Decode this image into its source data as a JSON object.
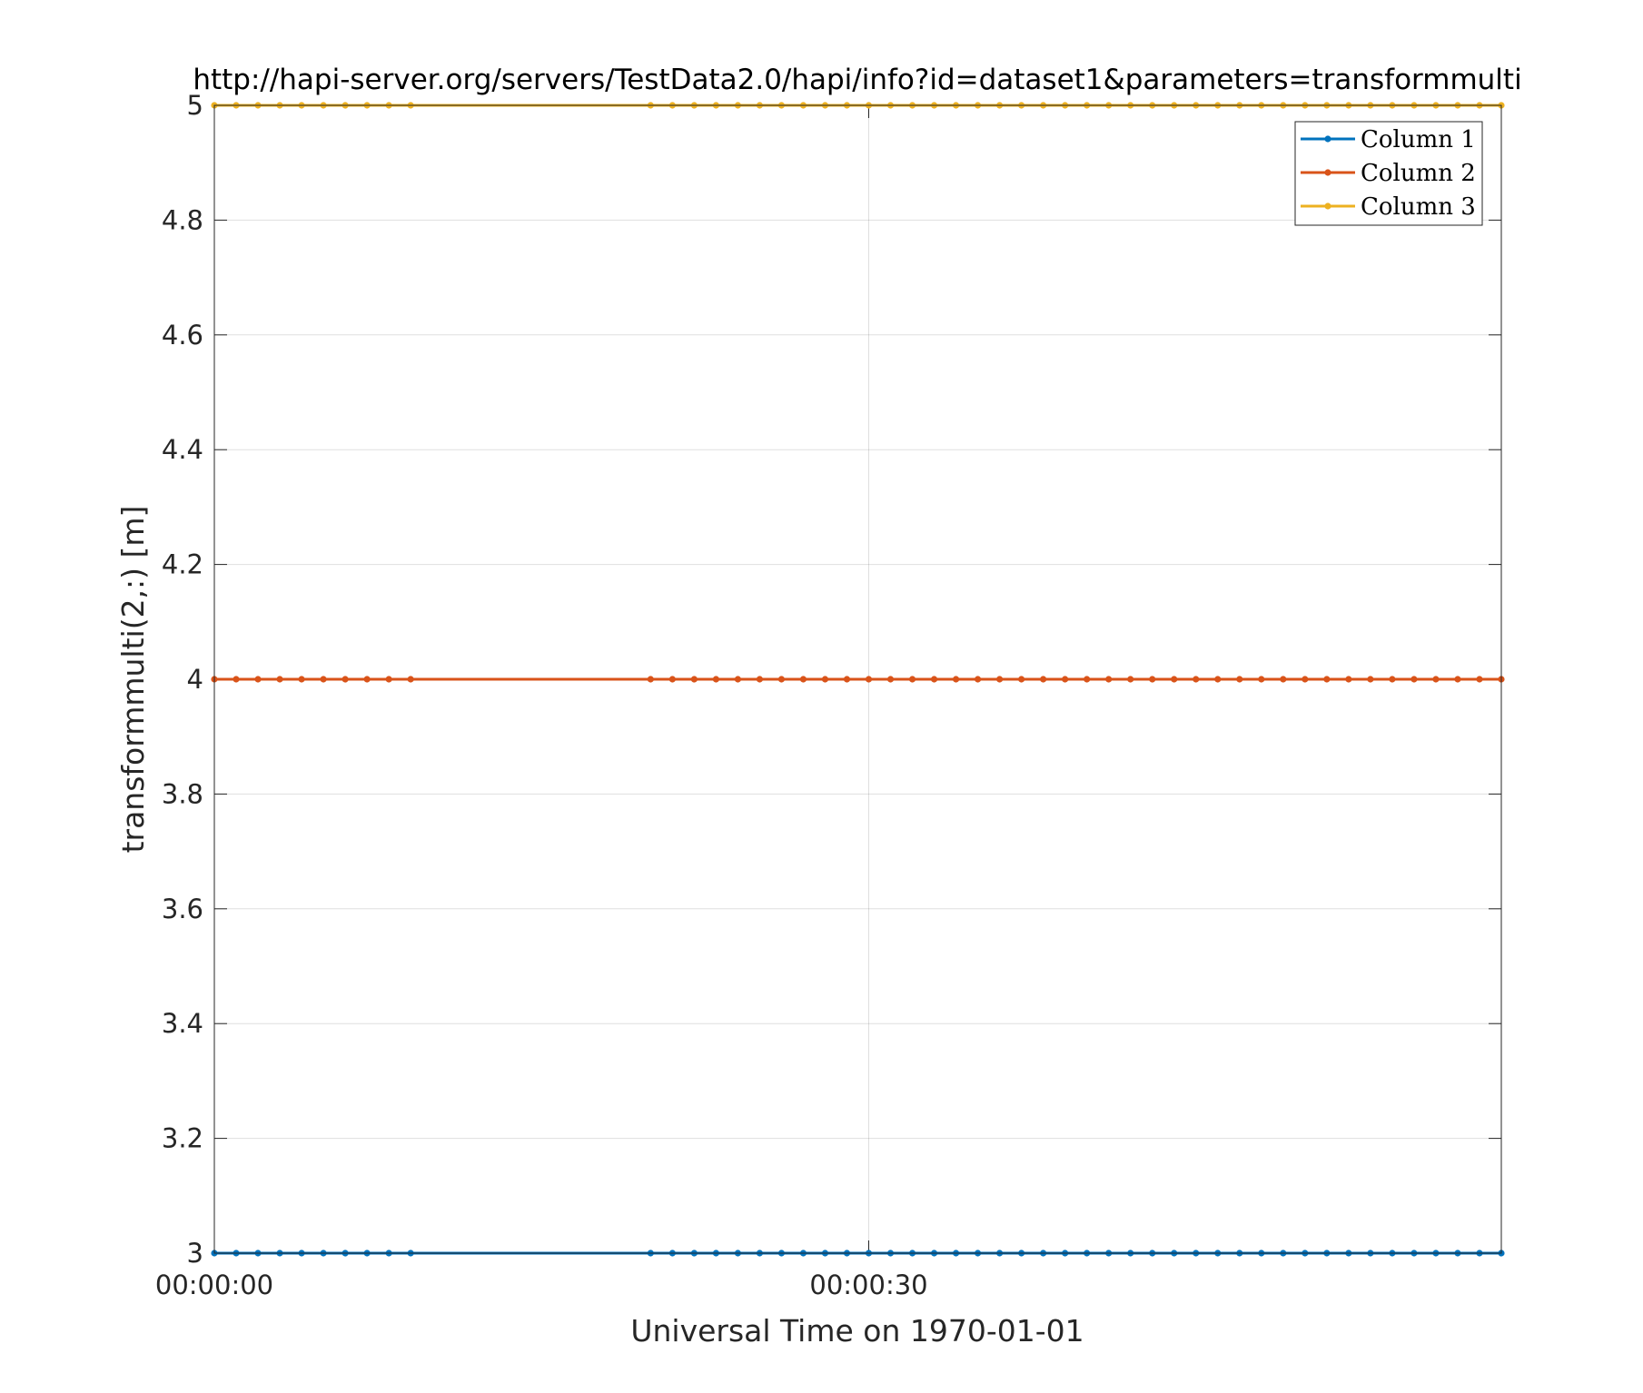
{
  "chart_data": {
    "type": "line",
    "title": "http://hapi-server.org/servers/TestData2.0/hapi/info?id=dataset1&parameters=transformmulti",
    "xlabel": "Universal Time on 1970-01-01",
    "ylabel": "transformmulti(2,:) [m]",
    "xlim": [
      0,
      59
    ],
    "ylim": [
      3,
      5
    ],
    "x_ticks": [
      {
        "value": 0,
        "label": "00:00:00"
      },
      {
        "value": 30,
        "label": "00:00:30"
      }
    ],
    "y_ticks": [
      {
        "value": 3,
        "label": "3"
      },
      {
        "value": 3.2,
        "label": "3.2"
      },
      {
        "value": 3.4,
        "label": "3.4"
      },
      {
        "value": 3.6,
        "label": "3.6"
      },
      {
        "value": 3.8,
        "label": "3.8"
      },
      {
        "value": 4,
        "label": "4"
      },
      {
        "value": 4.2,
        "label": "4.2"
      },
      {
        "value": 4.4,
        "label": "4.4"
      },
      {
        "value": 4.6,
        "label": "4.6"
      },
      {
        "value": 4.8,
        "label": "4.8"
      },
      {
        "value": 5,
        "label": "5"
      }
    ],
    "x": [
      0,
      1,
      2,
      3,
      4,
      5,
      6,
      7,
      8,
      9,
      20,
      21,
      22,
      23,
      24,
      25,
      26,
      27,
      28,
      29,
      30,
      31,
      32,
      33,
      34,
      35,
      36,
      37,
      38,
      39,
      40,
      41,
      42,
      43,
      44,
      45,
      46,
      47,
      48,
      49,
      50,
      51,
      52,
      53,
      54,
      55,
      56,
      57,
      58,
      59
    ],
    "series": [
      {
        "name": "Column 1",
        "color": "#0072BD",
        "value": 3
      },
      {
        "name": "Column 2",
        "color": "#D95319",
        "value": 4
      },
      {
        "name": "Column 3",
        "color": "#EDB120",
        "value": 5
      }
    ],
    "grid": true,
    "legend_position": "top-right"
  }
}
